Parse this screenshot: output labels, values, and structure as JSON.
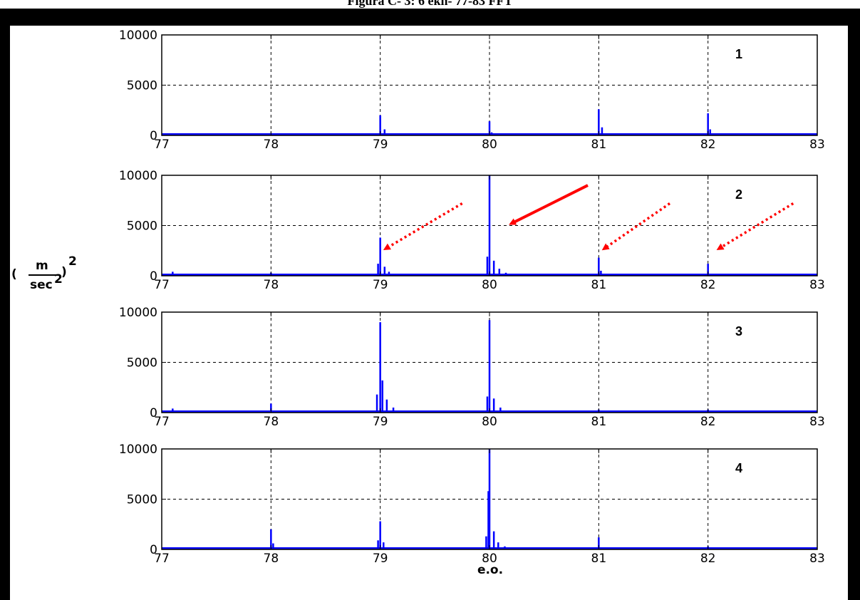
{
  "caption": "Figura C- 3: 6 ekn- 77-83 FFT",
  "y_unit": {
    "open": "(",
    "num": "m",
    "den": "sec",
    "den_exp": "2",
    "close": ")",
    "outer_exp": "2"
  },
  "xlabel": "e.o.",
  "colors": {
    "line": "#0000ff",
    "arrow": "#ff0000",
    "grid": "#000000",
    "frame": "#000000"
  },
  "chart_data": [
    {
      "type": "line",
      "panel": "1",
      "xlim": [
        77,
        83
      ],
      "ylim": [
        0,
        10000
      ],
      "xticks": [
        77,
        78,
        79,
        80,
        81,
        82,
        83
      ],
      "yticks": [
        0,
        5000,
        10000
      ],
      "grid": true,
      "peaks": [
        {
          "x": 79.0,
          "y": 2000
        },
        {
          "x": 79.04,
          "y": 600
        },
        {
          "x": 80.0,
          "y": 1400
        },
        {
          "x": 80.02,
          "y": 300
        },
        {
          "x": 81.0,
          "y": 2600
        },
        {
          "x": 81.03,
          "y": 800
        },
        {
          "x": 82.0,
          "y": 2200
        },
        {
          "x": 82.02,
          "y": 600
        }
      ]
    },
    {
      "type": "line",
      "panel": "2",
      "xlim": [
        77,
        83
      ],
      "ylim": [
        0,
        10000
      ],
      "xticks": [
        77,
        78,
        79,
        80,
        81,
        82,
        83
      ],
      "yticks": [
        0,
        5000,
        10000
      ],
      "grid": true,
      "peaks": [
        {
          "x": 77.1,
          "y": 400
        },
        {
          "x": 78.0,
          "y": 300
        },
        {
          "x": 78.98,
          "y": 1200
        },
        {
          "x": 79.0,
          "y": 3800
        },
        {
          "x": 79.04,
          "y": 900
        },
        {
          "x": 79.08,
          "y": 400
        },
        {
          "x": 79.98,
          "y": 1900
        },
        {
          "x": 80.0,
          "y": 10000
        },
        {
          "x": 80.04,
          "y": 1500
        },
        {
          "x": 80.09,
          "y": 700
        },
        {
          "x": 80.15,
          "y": 300
        },
        {
          "x": 81.0,
          "y": 1800
        },
        {
          "x": 81.02,
          "y": 500
        },
        {
          "x": 82.0,
          "y": 1200
        }
      ],
      "annotations": [
        {
          "style": "dotted",
          "from": [
            79.75,
            7200
          ],
          "to": [
            79.05,
            2700
          ]
        },
        {
          "style": "solid",
          "from": [
            80.9,
            9000
          ],
          "to": [
            80.2,
            5200
          ]
        },
        {
          "style": "dotted",
          "from": [
            81.65,
            7200
          ],
          "to": [
            81.05,
            2700
          ]
        },
        {
          "style": "dotted",
          "from": [
            82.78,
            7200
          ],
          "to": [
            82.1,
            2700
          ]
        }
      ]
    },
    {
      "type": "line",
      "panel": "3",
      "xlim": [
        77,
        83
      ],
      "ylim": [
        0,
        10000
      ],
      "xticks": [
        77,
        78,
        79,
        80,
        81,
        82,
        83
      ],
      "yticks": [
        0,
        5000,
        10000
      ],
      "grid": true,
      "peaks": [
        {
          "x": 77.1,
          "y": 400
        },
        {
          "x": 78.0,
          "y": 900
        },
        {
          "x": 78.15,
          "y": 200
        },
        {
          "x": 78.97,
          "y": 1800
        },
        {
          "x": 79.0,
          "y": 9000
        },
        {
          "x": 79.02,
          "y": 3200
        },
        {
          "x": 79.06,
          "y": 1300
        },
        {
          "x": 79.12,
          "y": 500
        },
        {
          "x": 79.98,
          "y": 1600
        },
        {
          "x": 80.0,
          "y": 9200
        },
        {
          "x": 80.04,
          "y": 1400
        },
        {
          "x": 80.1,
          "y": 500
        },
        {
          "x": 81.0,
          "y": 300
        },
        {
          "x": 82.0,
          "y": 300
        }
      ]
    },
    {
      "type": "line",
      "panel": "4",
      "xlim": [
        77,
        83
      ],
      "ylim": [
        0,
        10000
      ],
      "xticks": [
        77,
        78,
        79,
        80,
        81,
        82,
        83
      ],
      "yticks": [
        0,
        5000,
        10000
      ],
      "grid": true,
      "peaks": [
        {
          "x": 78.0,
          "y": 2000
        },
        {
          "x": 78.02,
          "y": 600
        },
        {
          "x": 78.98,
          "y": 900
        },
        {
          "x": 79.0,
          "y": 2800
        },
        {
          "x": 79.03,
          "y": 700
        },
        {
          "x": 79.97,
          "y": 1300
        },
        {
          "x": 79.99,
          "y": 5800
        },
        {
          "x": 80.0,
          "y": 10000
        },
        {
          "x": 80.04,
          "y": 1800
        },
        {
          "x": 80.08,
          "y": 700
        },
        {
          "x": 80.14,
          "y": 300
        },
        {
          "x": 81.0,
          "y": 1200
        },
        {
          "x": 82.0,
          "y": 300
        }
      ]
    }
  ]
}
